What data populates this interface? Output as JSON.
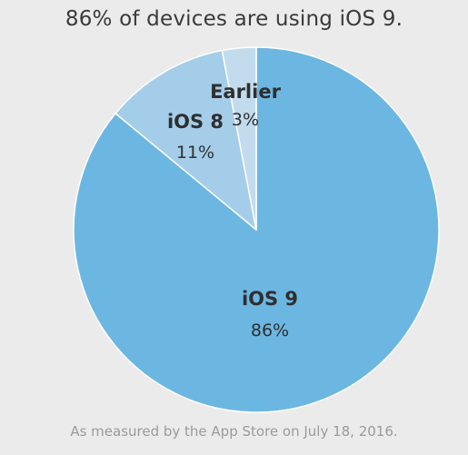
{
  "title": "86% of devices are using iOS 9.",
  "footnote": "As measured by the App Store on July 18, 2016.",
  "colors": {
    "background": "#ebebeb",
    "slice_edge": "#ffffff"
  },
  "chart_data": {
    "type": "pie",
    "title": "86% of devices are using iOS 9.",
    "slices": [
      {
        "label": "iOS 9",
        "value": 86,
        "display": "86%",
        "color": "#6cb7e2"
      },
      {
        "label": "iOS 8",
        "value": 11,
        "display": "11%",
        "color": "#a4cde9"
      },
      {
        "label": "Earlier",
        "value": 3,
        "display": "3%",
        "color": "#c2dcee"
      }
    ],
    "start": "12 o'clock",
    "direction": "clockwise",
    "legend": "none"
  }
}
